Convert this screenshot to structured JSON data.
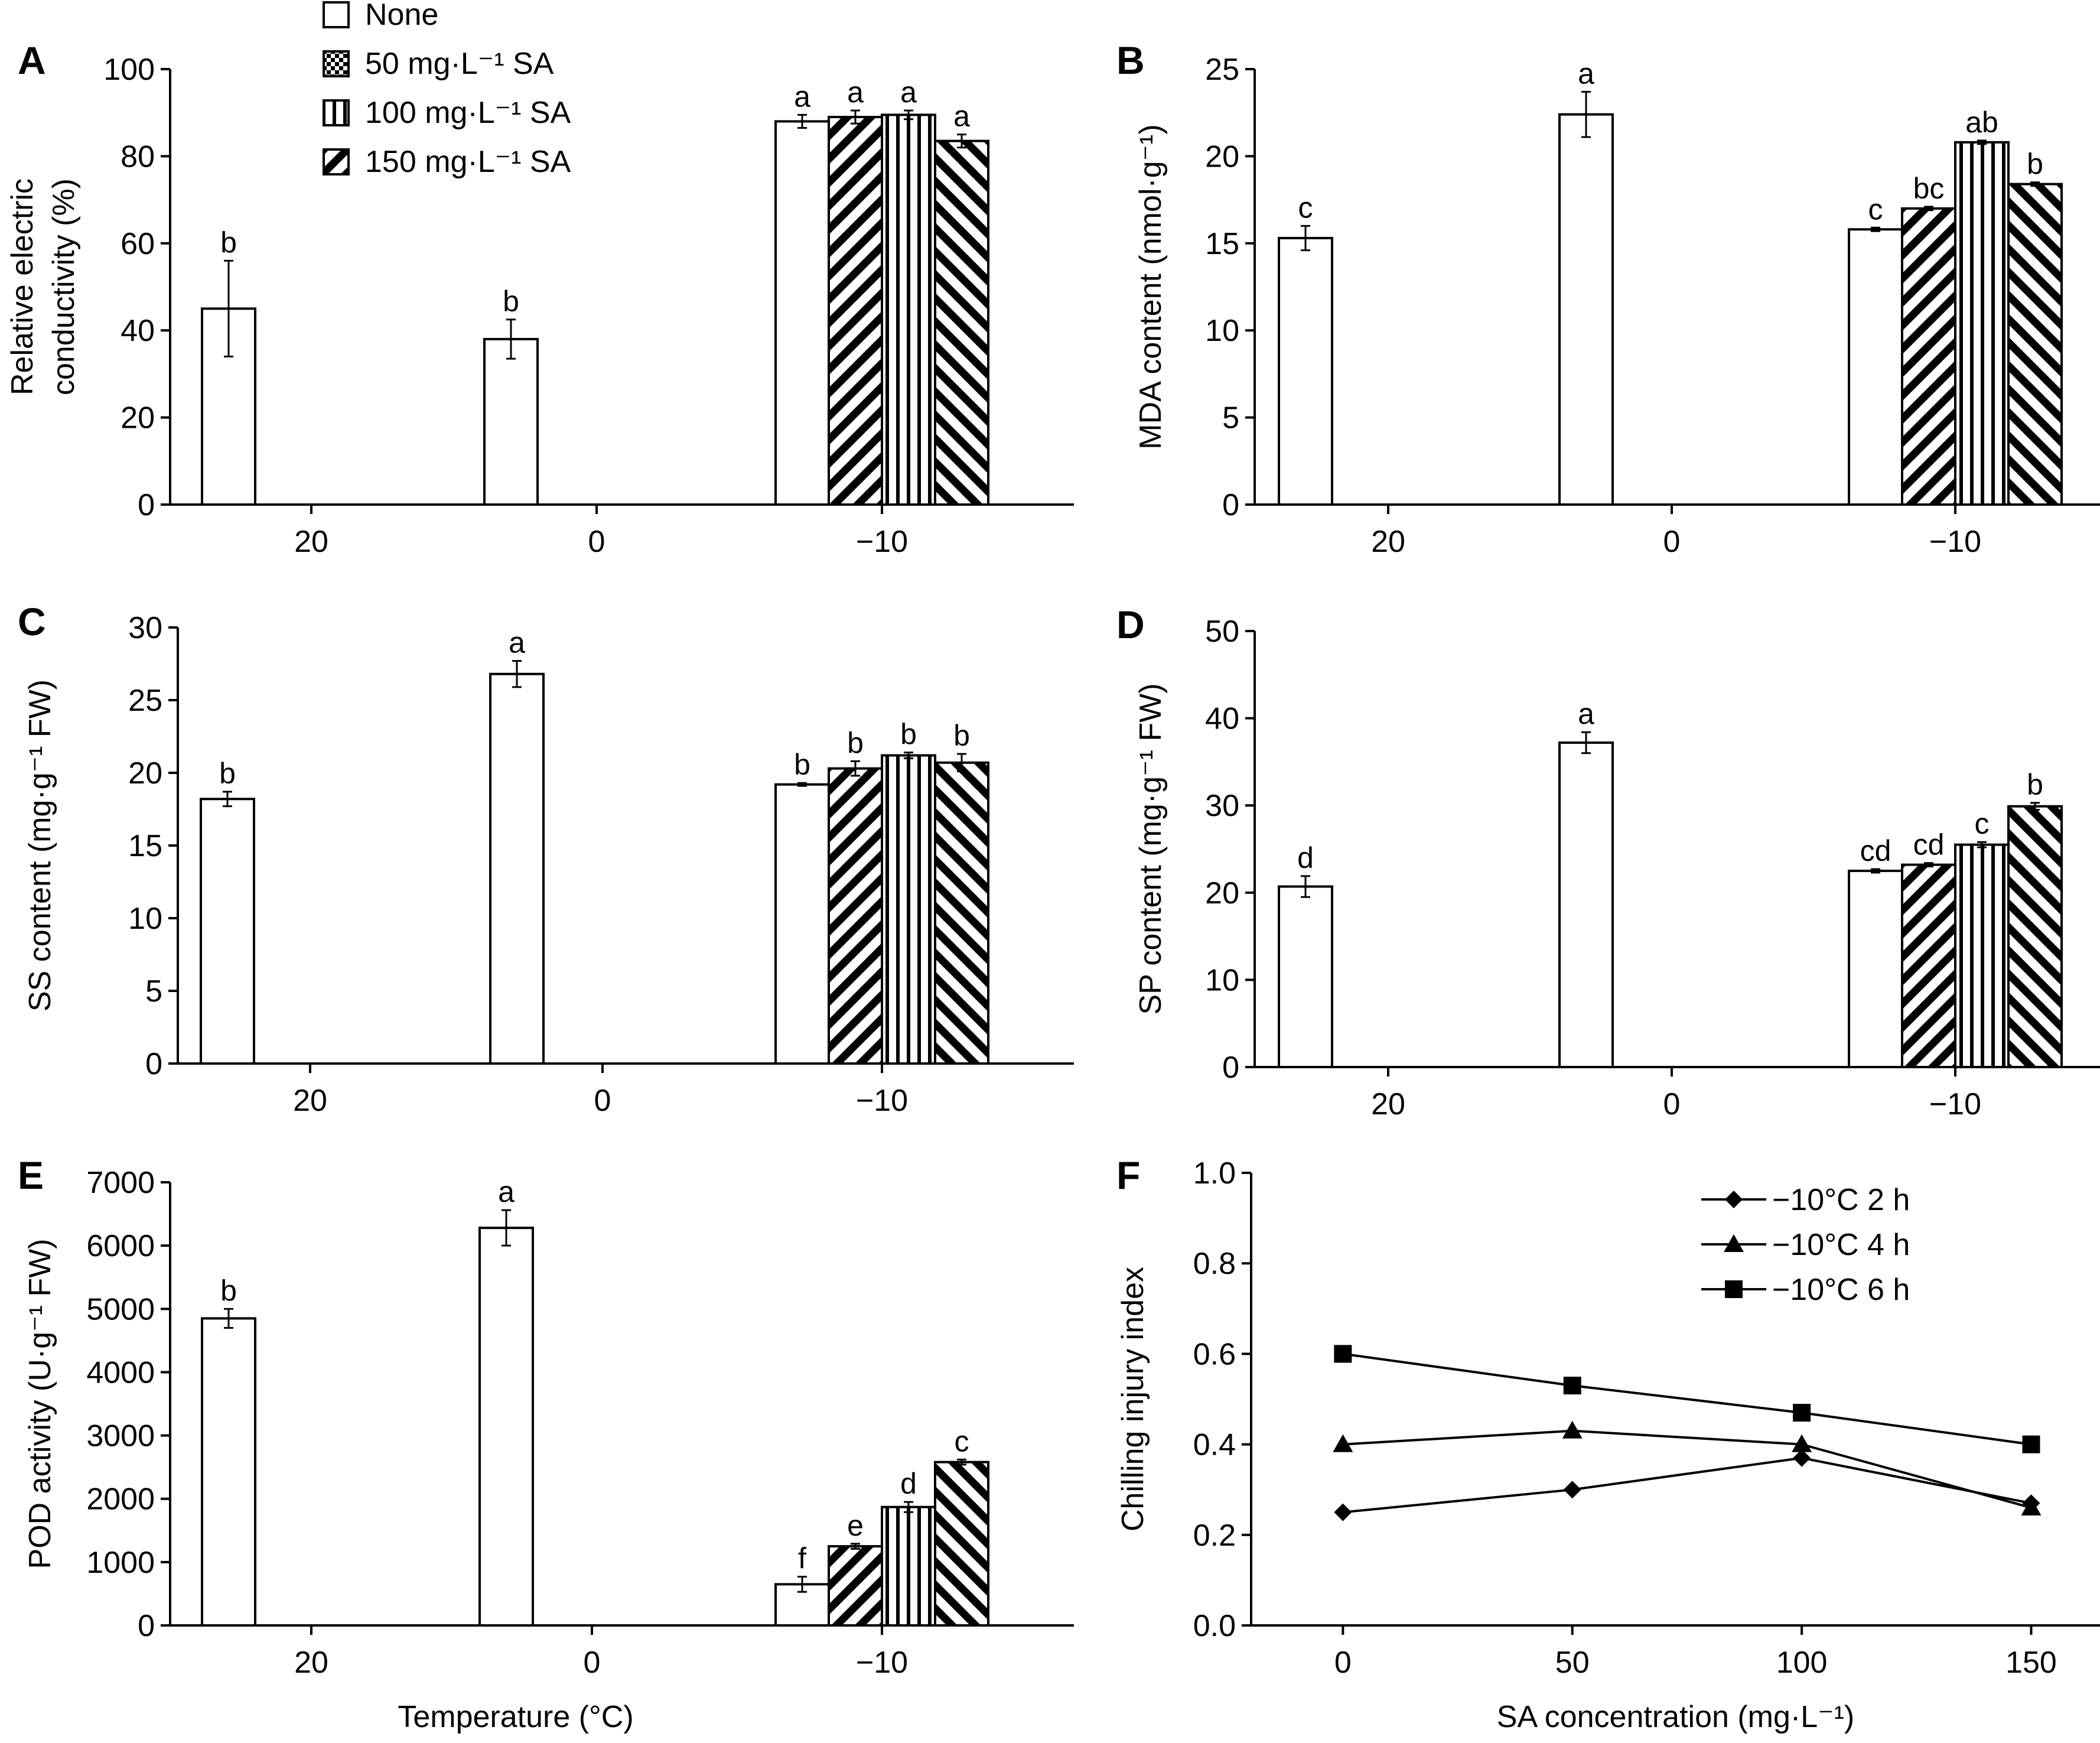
{
  "legend_bars": [
    {
      "key": "none",
      "label": "None",
      "pattern": "none"
    },
    {
      "key": "sa50",
      "label": "50 mg·L⁻¹ SA",
      "pattern": "checker"
    },
    {
      "key": "sa100",
      "label": "100 mg·L⁻¹ SA",
      "pattern": "vstripe"
    },
    {
      "key": "sa150",
      "label": "150 mg·L⁻¹ SA",
      "pattern": "diag"
    }
  ],
  "chart_data": [
    {
      "id": "A",
      "type": "bar",
      "ylabel": [
        "Relative electric",
        "conductivity (%)"
      ],
      "ylim": [
        0,
        100
      ],
      "yticks": [
        0,
        20,
        40,
        60,
        80,
        100
      ],
      "categories": [
        "20",
        "0",
        "−10"
      ],
      "bar_patterns": [
        [
          "none"
        ],
        [
          "none"
        ],
        [
          "none",
          "diag",
          "vstripe",
          "diag2"
        ]
      ],
      "values": [
        [
          45
        ],
        [
          38
        ],
        [
          88,
          89,
          89.5,
          83.5
        ]
      ],
      "errors": [
        [
          11
        ],
        [
          4.5
        ],
        [
          1.5,
          1.5,
          1,
          1.5
        ]
      ],
      "letters": [
        [
          "b"
        ],
        [
          "b"
        ],
        [
          "a",
          "a",
          "a",
          "a"
        ]
      ],
      "xlabel": ""
    },
    {
      "id": "B",
      "type": "bar",
      "ylabel": [
        "MDA content (nmol·g⁻¹)"
      ],
      "ylim": [
        0,
        25
      ],
      "yticks": [
        0,
        5,
        10,
        15,
        20,
        25
      ],
      "categories": [
        "20",
        "0",
        "−10"
      ],
      "bar_patterns": [
        [
          "none"
        ],
        [
          "none"
        ],
        [
          "none",
          "diag",
          "vstripe",
          "diag2"
        ]
      ],
      "values": [
        [
          15.3
        ],
        [
          22.4
        ],
        [
          15.8,
          17,
          20.8,
          18.4
        ]
      ],
      "errors": [
        [
          0.7
        ],
        [
          1.3
        ],
        [
          0.1,
          0.1,
          0.1,
          0.1
        ]
      ],
      "letters": [
        [
          "c"
        ],
        [
          "a"
        ],
        [
          "c",
          "bc",
          "ab",
          "b"
        ]
      ],
      "xlabel": ""
    },
    {
      "id": "C",
      "type": "bar",
      "ylabel": [
        "SS content (mg·g⁻¹ FW)"
      ],
      "ylim": [
        0,
        30
      ],
      "yticks": [
        0,
        5,
        10,
        15,
        20,
        25,
        30
      ],
      "categories": [
        "20",
        "0",
        "−10"
      ],
      "bar_patterns": [
        [
          "none"
        ],
        [
          "none"
        ],
        [
          "none",
          "diag",
          "vstripe",
          "diag2"
        ]
      ],
      "values": [
        [
          18.2
        ],
        [
          26.8
        ],
        [
          19.2,
          20.3,
          21.2,
          20.7
        ]
      ],
      "errors": [
        [
          0.5
        ],
        [
          0.9
        ],
        [
          0.1,
          0.5,
          0.2,
          0.6
        ]
      ],
      "letters": [
        [
          "b"
        ],
        [
          "a"
        ],
        [
          "b",
          "b",
          "b",
          "b"
        ]
      ],
      "xlabel": ""
    },
    {
      "id": "D",
      "type": "bar",
      "ylabel": [
        "SP content (mg·g⁻¹ FW)"
      ],
      "ylim": [
        0,
        50
      ],
      "yticks": [
        0,
        10,
        20,
        30,
        40,
        50
      ],
      "categories": [
        "20",
        "0",
        "−10"
      ],
      "bar_patterns": [
        [
          "none"
        ],
        [
          "none"
        ],
        [
          "none",
          "diag",
          "vstripe",
          "diag2"
        ]
      ],
      "values": [
        [
          20.7
        ],
        [
          37.2
        ],
        [
          22.5,
          23.2,
          25.5,
          29.9
        ]
      ],
      "errors": [
        [
          1.2
        ],
        [
          1.2
        ],
        [
          0.2,
          0.2,
          0.3,
          0.4
        ]
      ],
      "letters": [
        [
          "d"
        ],
        [
          "a"
        ],
        [
          "cd",
          "cd",
          "c",
          "b"
        ]
      ],
      "xlabel": ""
    },
    {
      "id": "E",
      "type": "bar",
      "ylabel": [
        "POD activity (U·g⁻¹ FW)"
      ],
      "ylim": [
        0,
        7000
      ],
      "yticks": [
        0,
        1000,
        2000,
        3000,
        4000,
        5000,
        6000,
        7000
      ],
      "categories": [
        "20",
        "0",
        "−10"
      ],
      "bar_patterns": [
        [
          "none"
        ],
        [
          "none"
        ],
        [
          "none",
          "diag",
          "vstripe",
          "diag2"
        ]
      ],
      "values": [
        [
          4850
        ],
        [
          6280
        ],
        [
          650,
          1250,
          1870,
          2580
        ]
      ],
      "errors": [
        [
          150
        ],
        [
          280
        ],
        [
          120,
          40,
          80,
          40
        ]
      ],
      "letters": [
        [
          "b"
        ],
        [
          "a"
        ],
        [
          "f",
          "e",
          "d",
          "c"
        ]
      ],
      "xlabel": "Temperature (°C)"
    },
    {
      "id": "F",
      "type": "line",
      "ylabel": [
        "Chilling injury index"
      ],
      "xlabel": "SA concentration (mg·L⁻¹)",
      "xlim": [
        -20,
        165
      ],
      "ylim": [
        0,
        1.0
      ],
      "xticks": [
        0,
        50,
        100,
        150
      ],
      "yticks": [
        "0.0",
        "0.2",
        "0.4",
        "0.6",
        "0.8",
        "1.0"
      ],
      "x": [
        0,
        50,
        100,
        150
      ],
      "series": [
        {
          "name": "−10°C  2 h",
          "marker": "diamond",
          "values": [
            0.25,
            0.3,
            0.37,
            0.27
          ]
        },
        {
          "name": "−10°C  4 h",
          "marker": "triangle",
          "values": [
            0.4,
            0.43,
            0.4,
            0.26
          ]
        },
        {
          "name": "−10°C  6 h",
          "marker": "square",
          "values": [
            0.6,
            0.53,
            0.47,
            0.4
          ]
        }
      ]
    }
  ]
}
